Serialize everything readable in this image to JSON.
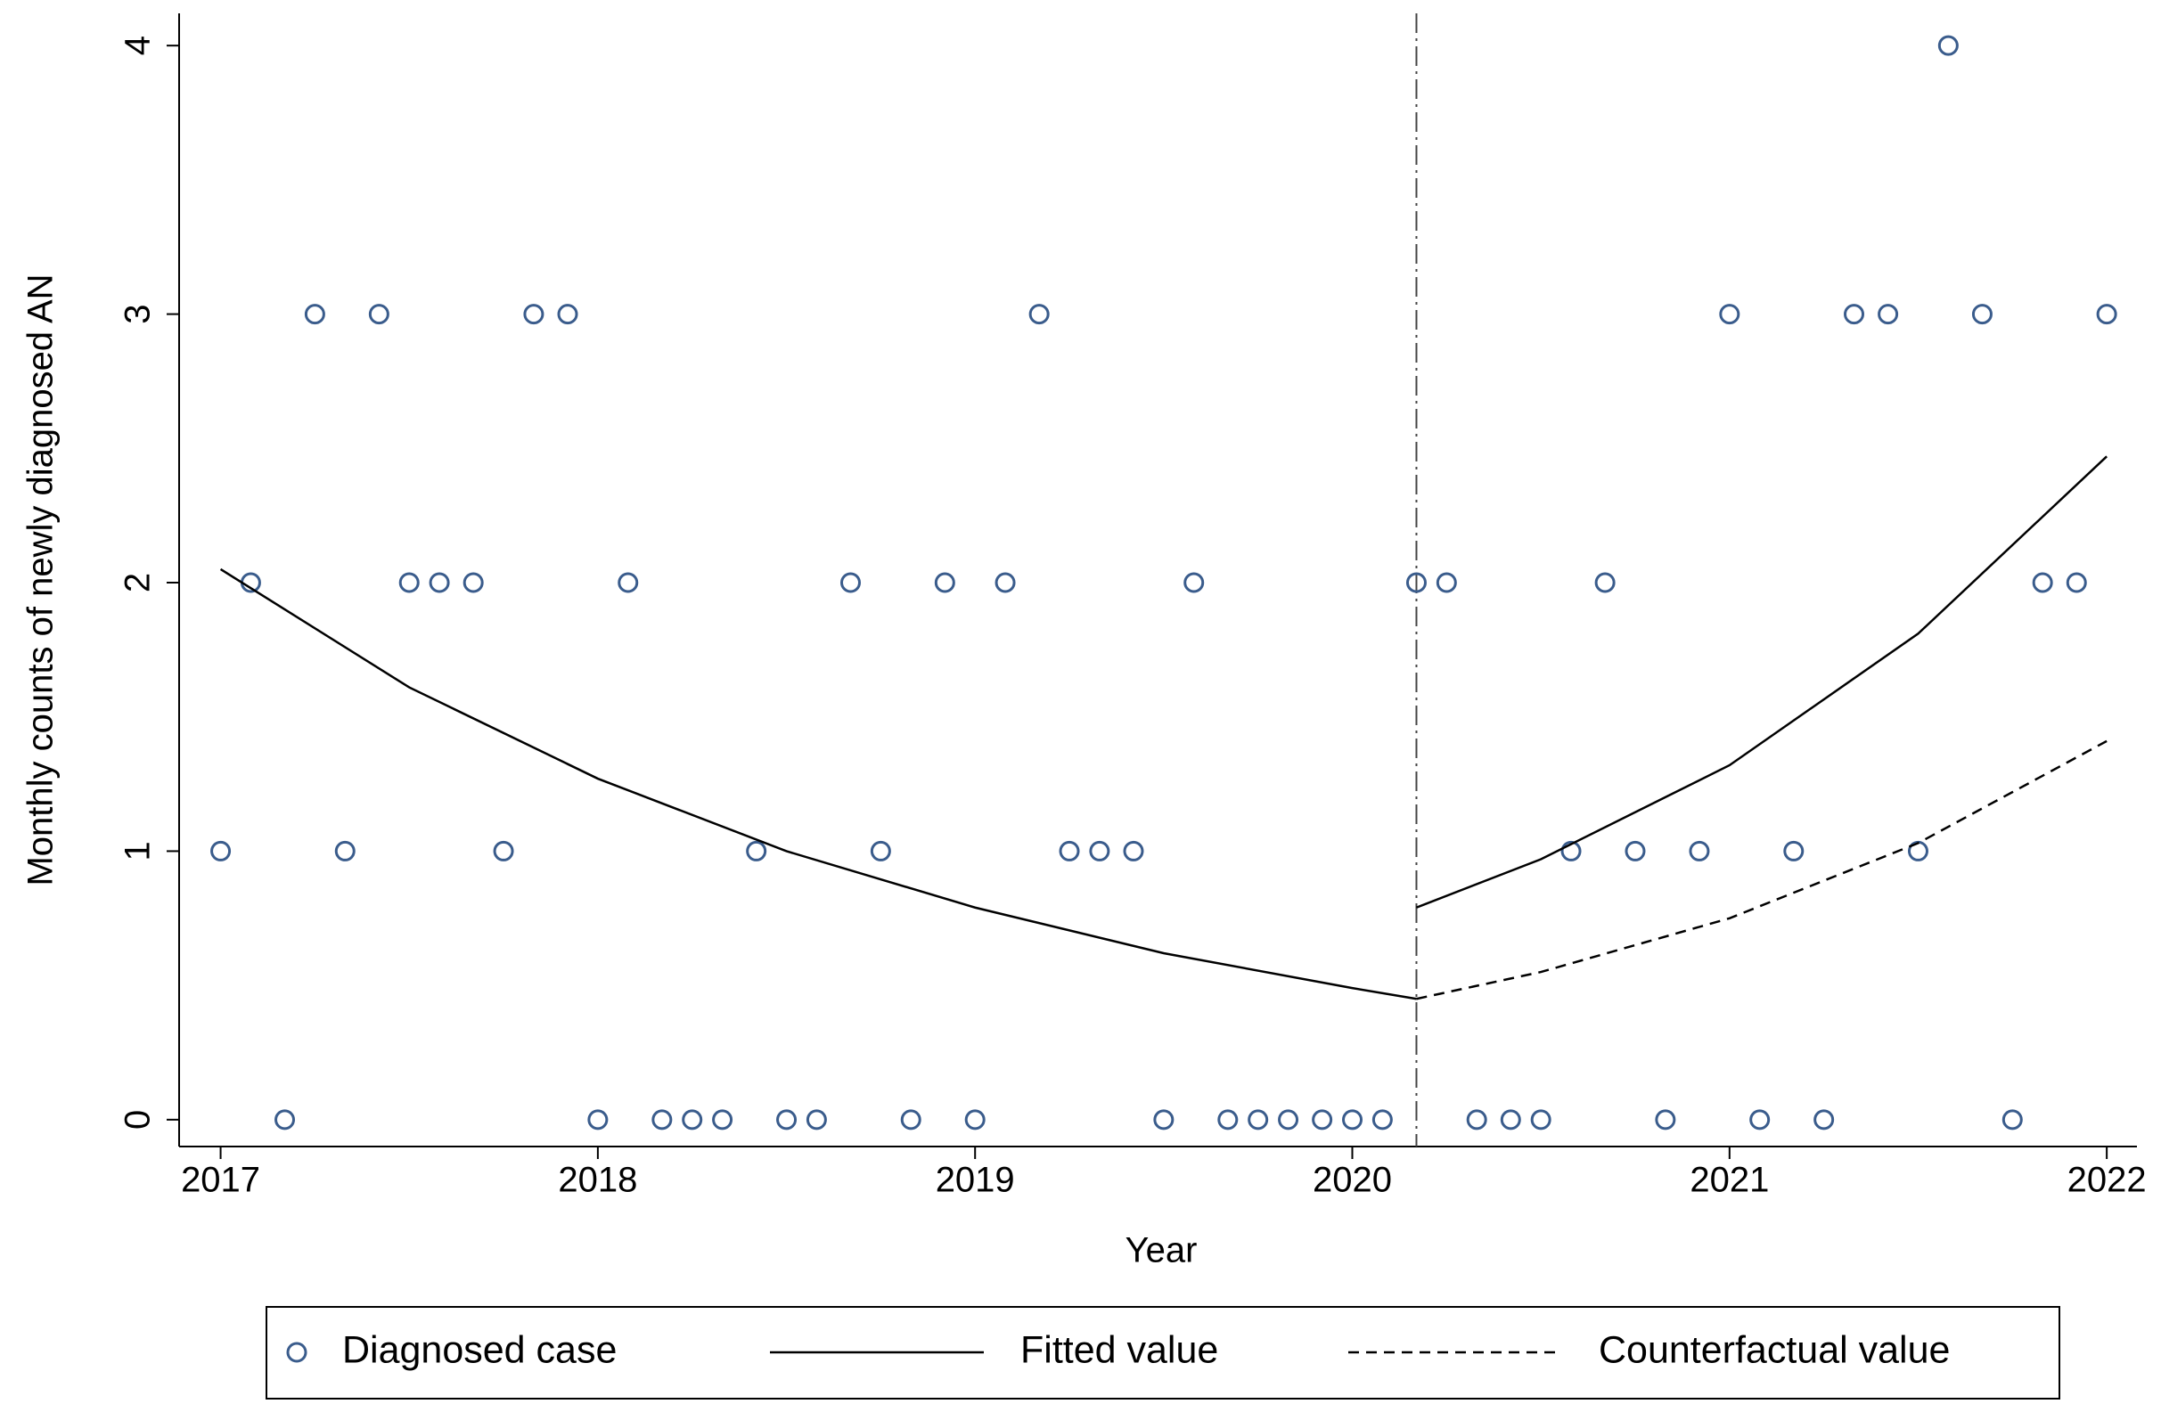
{
  "chart_data": {
    "type": "scatter",
    "y_label": "Monthly counts of newly diagnosed AN",
    "x_label": "Year",
    "xlim": [
      2016.89,
      2022.08
    ],
    "ylim": [
      -0.1,
      4.12
    ],
    "xticks": [
      2017,
      2018,
      2019,
      2020,
      2021,
      2022
    ],
    "yticks": [
      0,
      1,
      2,
      3,
      4
    ],
    "intervention_x": 2020.17,
    "series": [
      {
        "name": "Diagnosed case",
        "type": "scatter",
        "color": "#3a5c8c",
        "x": [
          2017,
          2017.08,
          2017.17,
          2017.25,
          2017.33,
          2017.42,
          2017.5,
          2017.58,
          2017.67,
          2017.75,
          2017.83,
          2017.92,
          2018,
          2018.08,
          2018.17,
          2018.25,
          2018.33,
          2018.42,
          2018.5,
          2018.58,
          2018.67,
          2018.75,
          2018.83,
          2018.92,
          2019,
          2019.08,
          2019.17,
          2019.25,
          2019.33,
          2019.42,
          2019.5,
          2019.58,
          2019.67,
          2019.75,
          2019.83,
          2019.92,
          2020,
          2020.08,
          2020.17,
          2020.25,
          2020.33,
          2020.42,
          2020.5,
          2020.58,
          2020.67,
          2020.75,
          2020.83,
          2020.92,
          2021,
          2021.08,
          2021.17,
          2021.25,
          2021.33,
          2021.42,
          2021.5,
          2021.58,
          2021.67,
          2021.75,
          2021.83,
          2021.92,
          2022
        ],
        "values": [
          1,
          2,
          0,
          3,
          1,
          3,
          2,
          2,
          2,
          1,
          3,
          3,
          0,
          2,
          0,
          0,
          0,
          1,
          0,
          0,
          2,
          1,
          0,
          2,
          0,
          2,
          3,
          1,
          1,
          1,
          0,
          2,
          0,
          0,
          0,
          0,
          0,
          0,
          2,
          2,
          0,
          0,
          0,
          1,
          2,
          1,
          0,
          1,
          3,
          0,
          1,
          0,
          3,
          3,
          1,
          4,
          3,
          0,
          2,
          2,
          3
        ]
      },
      {
        "name": "Fitted value",
        "type": "line",
        "color": "#000000",
        "style": "solid",
        "x": [
          2017,
          2017.5,
          2018,
          2018.5,
          2019,
          2019.5,
          2020,
          2020.17,
          2020.17,
          2020.17,
          2020.5,
          2021,
          2021.5,
          2022
        ],
        "values": [
          2.05,
          1.61,
          1.27,
          1.0,
          0.79,
          0.62,
          0.49,
          0.45,
          null,
          0.79,
          0.97,
          1.32,
          1.81,
          2.47
        ]
      },
      {
        "name": "Counterfactual value",
        "type": "line",
        "color": "#000000",
        "style": "dashed",
        "x": [
          2020.17,
          2020.5,
          2021,
          2021.5,
          2022
        ],
        "values": [
          0.45,
          0.55,
          0.75,
          1.03,
          1.41
        ]
      }
    ]
  }
}
